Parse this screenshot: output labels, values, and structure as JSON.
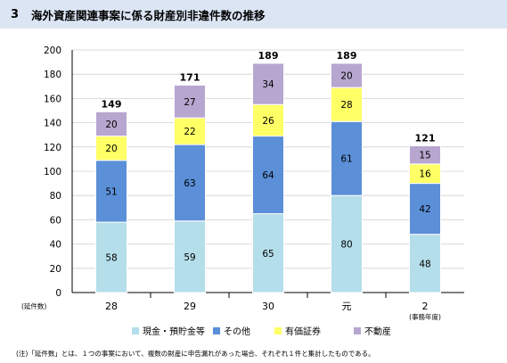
{
  "header": {
    "number": "3",
    "title": "海外資産関連事案に係る財産別非違件数の推移"
  },
  "chart_data": {
    "type": "bar",
    "stacked": true,
    "categories": [
      "28",
      "29",
      "30",
      "元",
      "2"
    ],
    "x_axis_left_label": "(延件数)",
    "x_axis_right_label": "(事務年度)",
    "ylim": [
      0,
      200
    ],
    "yticks": [
      0,
      20,
      40,
      60,
      80,
      100,
      120,
      140,
      160,
      180,
      200
    ],
    "grid": true,
    "legend_position": "bottom",
    "series": [
      {
        "name": "現金・預貯金等",
        "color": "#b4deea",
        "values": [
          58,
          59,
          65,
          80,
          48
        ]
      },
      {
        "name": "その他",
        "color": "#5b8fd8",
        "values": [
          51,
          63,
          64,
          61,
          42
        ]
      },
      {
        "name": "有価証券",
        "color": "#ffff66",
        "values": [
          20,
          22,
          26,
          28,
          16
        ]
      },
      {
        "name": "不動産",
        "color": "#b7a6cf",
        "values": [
          20,
          27,
          34,
          20,
          15
        ]
      }
    ],
    "totals": [
      149,
      171,
      189,
      189,
      121
    ]
  },
  "footnote": "(注)「延件数」とは、１つの事案において、複数の財産に申告漏れがあった場合、それぞれ１件と集計したものである。"
}
